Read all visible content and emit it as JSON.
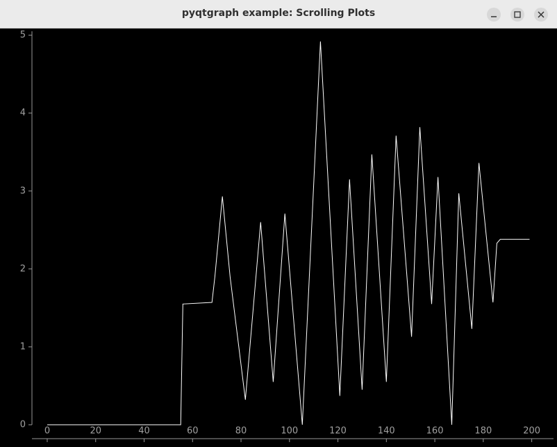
{
  "window": {
    "title": "pyqtgraph example: Scrolling Plots"
  },
  "chart_data": {
    "type": "line",
    "x": [
      0,
      55.1,
      56,
      68,
      69.2,
      72.3,
      75.5,
      81.8,
      88.1,
      93.3,
      98.1,
      105.3,
      112.8,
      120.8,
      124.8,
      130,
      134,
      140,
      144,
      150.4,
      153.8,
      158.7,
      161.3,
      167,
      169.9,
      175.3,
      178.2,
      184,
      185.6,
      187,
      199.1
    ],
    "series": [
      {
        "color": "#ffffff",
        "values": [
          0,
          0,
          1.55,
          1.57,
          1.9,
          2.93,
          1.9,
          0.32,
          2.6,
          0.55,
          2.71,
          0.0,
          4.92,
          0.37,
          3.15,
          0.45,
          3.47,
          0.55,
          3.71,
          1.13,
          3.82,
          1.55,
          3.18,
          0,
          2.97,
          1.23,
          3.36,
          1.57,
          2.33,
          2.38,
          2.38
        ]
      }
    ],
    "xlim": [
      -6.3,
      209
    ],
    "ylim": [
      0,
      5.05
    ],
    "xticks": [
      0,
      20,
      40,
      60,
      80,
      100,
      120,
      140,
      160,
      180,
      200
    ],
    "yticks": [
      0,
      1,
      2,
      3,
      4,
      5
    ]
  }
}
